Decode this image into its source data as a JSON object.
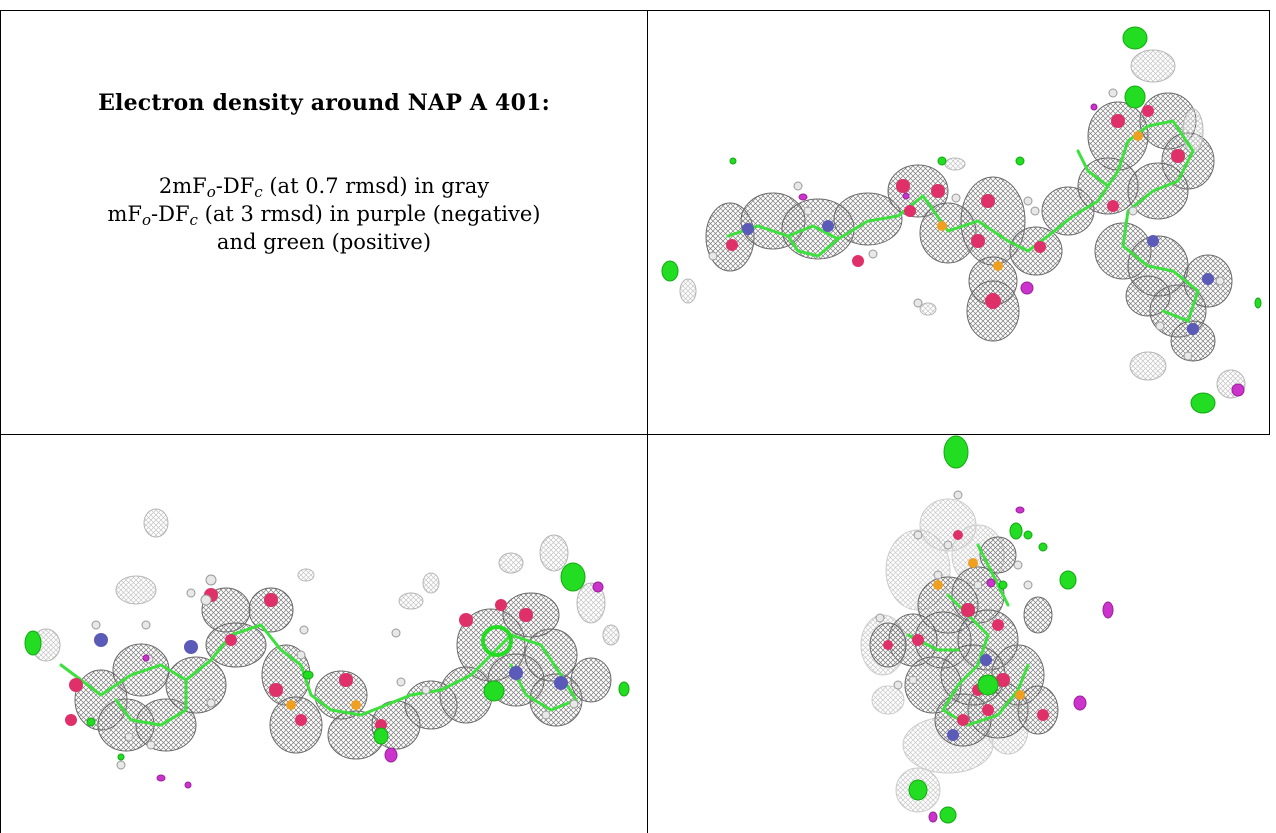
{
  "caption": {
    "title": "Electron density around NAP A 401:",
    "line1_prefix": "2mF",
    "line1_sub1": "o",
    "line1_mid": "-DF",
    "line1_sub2": "c",
    "line1_suffix": " (at 0.7 rmsd) in gray",
    "line2_prefix": "mF",
    "line2_sub1": "o",
    "line2_mid": "-DF",
    "line2_sub2": "c",
    "line2_suffix": " (at 3 rmsd) in purple (negative)",
    "line3": "and green (positive)"
  },
  "colors": {
    "mesh_gray": "#8a8a8a",
    "mesh_gray_light": "#c8c8c8",
    "carbon_green": "#3de03d",
    "oxygen_red": "#e0306a",
    "nitrogen_blue": "#5a5ab8",
    "phosphorus_orange": "#f0a020",
    "negative_purple": "#cc33cc",
    "positive_green": "#22dd22",
    "hydrogen_white": "#e8e8e8",
    "border": "#000000"
  },
  "panels": [
    "density-view-top-right",
    "density-view-bottom-left",
    "density-view-bottom-right"
  ]
}
